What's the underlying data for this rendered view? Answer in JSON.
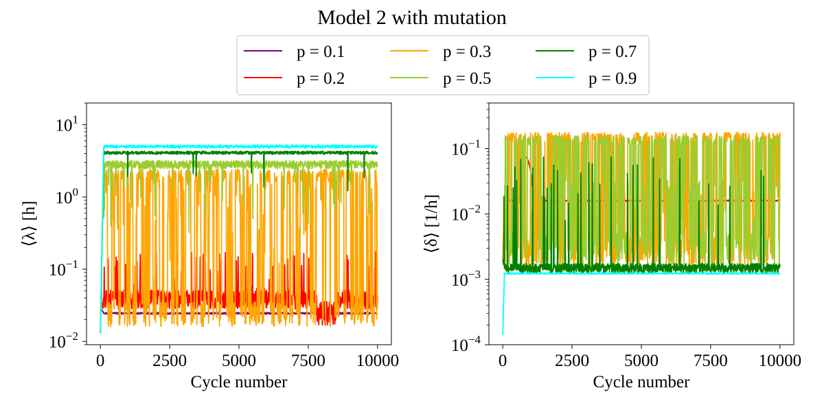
{
  "title": "Model 2 with mutation",
  "legend": {
    "placement": "top-center",
    "columns": 3
  },
  "chart_data": [
    {
      "type": "line",
      "xlabel": "Cycle number",
      "ylabel": "⟨λ⟩ [h]",
      "xlim": [
        -500,
        10500
      ],
      "ylim": [
        0.009,
        20
      ],
      "yscale": "log",
      "xticks": [
        0,
        2500,
        5000,
        7500,
        10000
      ],
      "yticks": [
        {
          "value": 0.01,
          "base": "10",
          "exp": "−2"
        },
        {
          "value": 0.1,
          "base": "10",
          "exp": "−1"
        },
        {
          "value": 1,
          "base": "10",
          "exp": "0"
        },
        {
          "value": 10,
          "base": "10",
          "exp": "1"
        }
      ],
      "grid": false,
      "series": [
        {
          "name": "p = 0.1",
          "color": "#800080",
          "behavior": "low",
          "baseline": 0.0245
        },
        {
          "name": "p = 0.2",
          "color": "#ff0000",
          "behavior": "noisy-low",
          "baseline": 0.028
        },
        {
          "name": "p = 0.3",
          "color": "#ffa500",
          "behavior": "switching",
          "low": 0.016,
          "high": 2.0
        },
        {
          "name": "p = 0.5",
          "color": "#9acd32",
          "behavior": "plateau-dips",
          "baseline": 2.9
        },
        {
          "name": "p = 0.7",
          "color": "#008000",
          "behavior": "plateau",
          "baseline": 4.1
        },
        {
          "name": "p = 0.9",
          "color": "#00ffff",
          "behavior": "plateau",
          "baseline": 5.0
        }
      ]
    },
    {
      "type": "line",
      "xlabel": "Cycle number",
      "ylabel": "⟨δ⟩ [1/h]",
      "xlim": [
        -500,
        10500
      ],
      "ylim": [
        0.0001,
        0.5
      ],
      "yscale": "log",
      "xticks": [
        0,
        2500,
        5000,
        7500,
        10000
      ],
      "yticks": [
        {
          "value": 0.0001,
          "base": "10",
          "exp": "−4"
        },
        {
          "value": 0.001,
          "base": "10",
          "exp": "−3"
        },
        {
          "value": 0.01,
          "base": "10",
          "exp": "−2"
        },
        {
          "value": 0.1,
          "base": "10",
          "exp": "−1"
        }
      ],
      "grid": false,
      "series": [
        {
          "name": "p = 0.1",
          "color": "#800080",
          "behavior": "flat",
          "baseline": 0.016
        },
        {
          "name": "p = 0.2",
          "color": "#ff0000",
          "behavior": "flat",
          "baseline": 0.016
        },
        {
          "name": "p = 0.3",
          "color": "#ffa500",
          "behavior": "switching",
          "low": 0.0013,
          "high": 0.17
        },
        {
          "name": "p = 0.5",
          "color": "#9acd32",
          "behavior": "switching",
          "low": 0.0015,
          "high": 0.15
        },
        {
          "name": "p = 0.7",
          "color": "#008000",
          "behavior": "floor-spikes",
          "baseline": 0.00125
        },
        {
          "name": "p = 0.9",
          "color": "#00ffff",
          "behavior": "floor",
          "baseline": 0.0012
        }
      ]
    }
  ]
}
